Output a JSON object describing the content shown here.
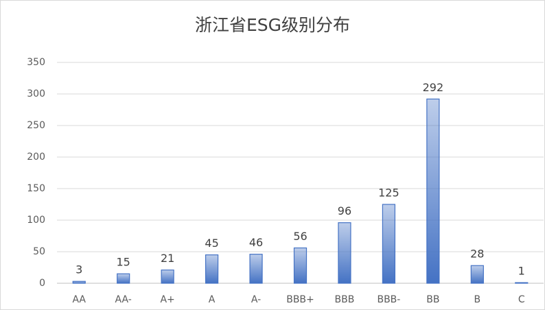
{
  "chart_data": {
    "type": "bar",
    "title": "浙江省ESG级别分布",
    "categories": [
      "AA",
      "AA-",
      "A+",
      "A",
      "A-",
      "BBB+",
      "BBB",
      "BBB-",
      "BB",
      "B",
      "C"
    ],
    "values": [
      3,
      15,
      21,
      45,
      46,
      56,
      96,
      125,
      292,
      28,
      1
    ],
    "color": "#4472c4",
    "ylim": [
      0,
      350
    ],
    "yticks": [
      0,
      50,
      100,
      150,
      200,
      250,
      300,
      350
    ],
    "grid": true
  }
}
